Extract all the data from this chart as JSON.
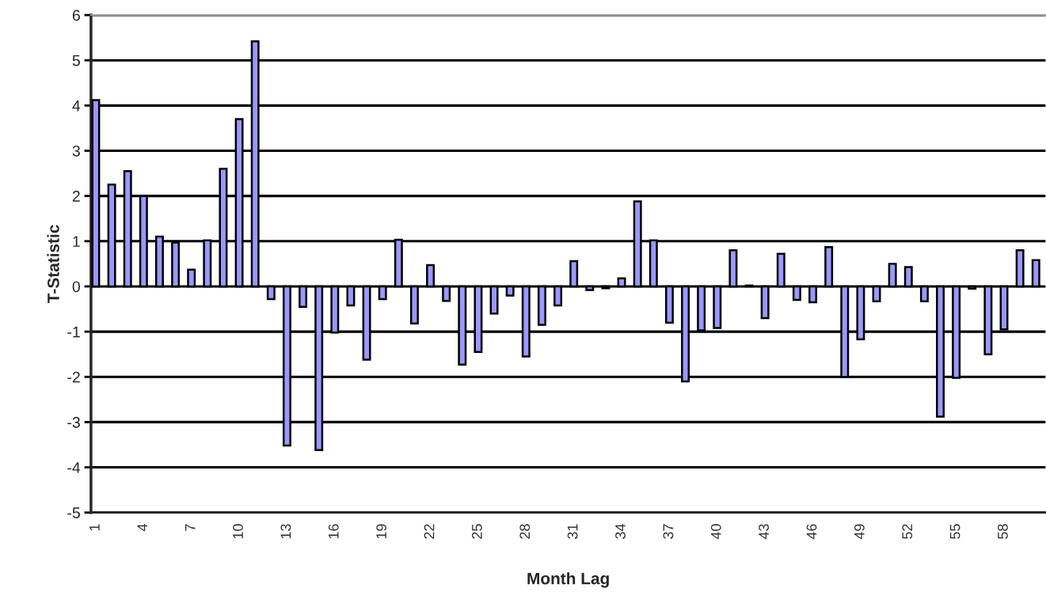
{
  "chart_data": {
    "type": "bar",
    "xlabel": "Month Lag",
    "ylabel": "T-Statistic",
    "categories": [
      "1",
      null,
      null,
      "4",
      null,
      null,
      "7",
      null,
      null,
      "10",
      null,
      null,
      "13",
      null,
      null,
      "16",
      null,
      null,
      "19",
      null,
      null,
      "22",
      null,
      null,
      "25",
      null,
      null,
      "28",
      null,
      null,
      "31",
      null,
      null,
      "34",
      null,
      null,
      "37",
      null,
      null,
      "40",
      null,
      null,
      "43",
      null,
      null,
      "46",
      null,
      null,
      "49",
      null,
      null,
      "52",
      null,
      null,
      "55",
      null,
      null,
      "58",
      null,
      null
    ],
    "series": [
      {
        "color": "#9999ff",
        "values": [
          4.12,
          2.25,
          2.55,
          2.0,
          1.1,
          0.97,
          0.37,
          1.02,
          2.6,
          3.7,
          5.42,
          -0.28,
          -3.52,
          -0.45,
          -3.62,
          -1.02,
          -0.42,
          -1.62,
          -0.28,
          1.03,
          -0.82,
          0.47,
          -0.32,
          -1.73,
          -1.45,
          -0.6,
          -0.2,
          -1.55,
          -0.85,
          -0.42,
          0.56,
          -0.08,
          -0.04,
          0.18,
          1.88,
          1.02,
          -0.8,
          -2.1,
          -0.97,
          -0.92,
          0.8,
          0.02,
          -0.7,
          0.72,
          -0.3,
          -0.35,
          0.87,
          -2.0,
          -1.17,
          -0.33,
          0.5,
          0.43,
          -0.33,
          -2.88,
          -2.02,
          -0.05,
          -1.5,
          -0.95,
          0.8,
          0.58
        ]
      }
    ],
    "ylim": [
      -5,
      6
    ],
    "yticks": [
      -5,
      -4,
      -3,
      -2,
      -1,
      0,
      1,
      2,
      3,
      4,
      5,
      6
    ],
    "grid": "y"
  }
}
